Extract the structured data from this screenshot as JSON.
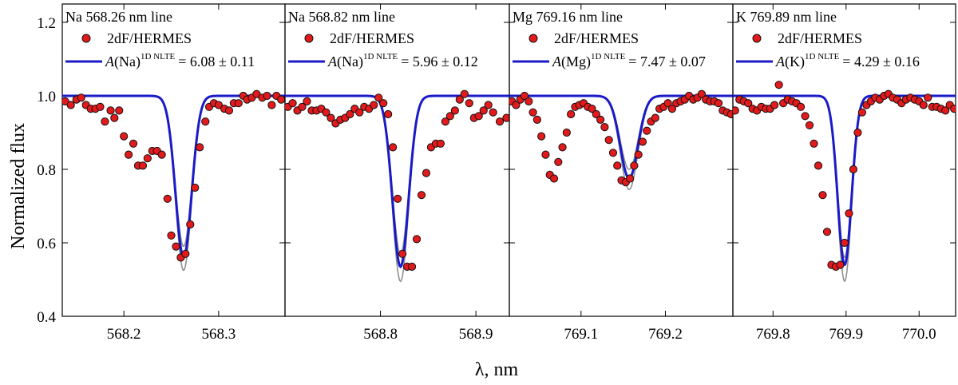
{
  "figure": {
    "ylabel": "Normalized flux",
    "xlabel": "λ, nm",
    "ylim": [
      0.4,
      1.25
    ],
    "yticks": [
      0.4,
      0.6,
      0.8,
      1.0,
      1.2
    ],
    "ytick_labels": [
      "0.4",
      "0.6",
      "0.8",
      "1.0",
      "1.2"
    ],
    "legend_points_label": "2dF/HERMES"
  },
  "colors": {
    "points": "#e31a1c",
    "best_fit": "#1a1ac8",
    "error_band": "#909090"
  },
  "chart_data": [
    {
      "type": "scatter",
      "title": "Na 568.26 nm line",
      "xlim": [
        568.135,
        568.37
      ],
      "xticks": [
        568.2,
        568.3
      ],
      "xtick_labels": [
        "568.2",
        "568.3"
      ],
      "fit_label": {
        "prefix": "A(Na)",
        "superscript": "1D NLTE",
        "value": "= 6.08 ± 0.11"
      },
      "line": {
        "center": 568.263,
        "depth": 0.44,
        "sigma": 0.0085,
        "depth_low": 0.41,
        "depth_high": 0.475
      },
      "observed": {
        "x": [
          568.138,
          568.144,
          568.15,
          568.155,
          568.16,
          568.165,
          568.17,
          568.175,
          568.18,
          568.186,
          568.19,
          568.195,
          568.2,
          568.205,
          568.21,
          568.215,
          568.22,
          568.225,
          568.23,
          568.235,
          568.24,
          568.246,
          568.25,
          568.255,
          568.26,
          568.265,
          568.27,
          568.275,
          568.28,
          568.286,
          568.29,
          568.295,
          568.3,
          568.306,
          568.311,
          568.316,
          568.321,
          568.326,
          568.33,
          568.335,
          568.34,
          568.346,
          568.351,
          568.356,
          568.361,
          568.366
        ],
        "y": [
          0.985,
          0.975,
          0.99,
          0.995,
          0.975,
          0.965,
          0.965,
          0.97,
          0.93,
          0.96,
          0.94,
          0.96,
          0.89,
          0.84,
          0.87,
          0.81,
          0.81,
          0.83,
          0.85,
          0.85,
          0.84,
          0.72,
          0.62,
          0.59,
          0.56,
          0.57,
          0.65,
          0.75,
          0.86,
          0.93,
          0.97,
          0.98,
          0.975,
          0.965,
          0.96,
          0.98,
          0.98,
          1.0,
          0.99,
          0.995,
          1.005,
          0.995,
          1.0,
          0.975,
          1.0,
          0.99
        ]
      }
    },
    {
      "type": "scatter",
      "title": "Na 568.82 nm line",
      "xlim": [
        568.7,
        568.935
      ],
      "xticks": [
        568.8,
        568.9
      ],
      "xtick_labels": [
        "568.8",
        "568.9"
      ],
      "fit_label": {
        "prefix": "A(Na)",
        "superscript": "1D NLTE",
        "value": "= 5.96 ± 0.12"
      },
      "line": {
        "center": 568.821,
        "depth": 0.465,
        "sigma": 0.0085,
        "depth_low": 0.43,
        "depth_high": 0.505
      },
      "observed": {
        "x": [
          568.703,
          568.708,
          568.713,
          568.718,
          568.723,
          568.728,
          568.733,
          568.738,
          568.743,
          568.748,
          568.753,
          568.758,
          568.763,
          568.768,
          568.773,
          568.778,
          568.783,
          568.788,
          568.793,
          568.798,
          568.803,
          568.808,
          568.813,
          568.818,
          568.823,
          568.828,
          568.833,
          568.838,
          568.843,
          568.848,
          568.853,
          568.858,
          568.863,
          568.868,
          568.873,
          568.878,
          568.883,
          568.888,
          568.893,
          568.898,
          568.903,
          568.908,
          568.913,
          568.918,
          568.925,
          568.932
        ],
        "y": [
          0.97,
          0.98,
          0.96,
          0.97,
          0.985,
          0.96,
          0.96,
          0.965,
          0.955,
          0.94,
          0.925,
          0.935,
          0.94,
          0.95,
          0.965,
          0.955,
          0.97,
          0.965,
          0.975,
          0.995,
          0.98,
          0.95,
          0.86,
          0.72,
          0.57,
          0.535,
          0.535,
          0.61,
          0.73,
          0.79,
          0.86,
          0.87,
          0.87,
          0.93,
          0.945,
          0.96,
          0.99,
          1.005,
          0.98,
          0.94,
          0.945,
          0.96,
          0.975,
          0.955,
          0.93,
          0.94
        ]
      }
    },
    {
      "type": "scatter",
      "title": "Mg 769.16 nm line",
      "xlim": [
        769.015,
        769.28
      ],
      "xticks": [
        769.1,
        769.2
      ],
      "xtick_labels": [
        "769.1",
        "769.2"
      ],
      "fit_label": {
        "prefix": "A(Mg)",
        "superscript": "1D NLTE",
        "value": "= 7.47 ± 0.07"
      },
      "line": {
        "center": 769.157,
        "depth": 0.225,
        "sigma": 0.0105,
        "depth_low": 0.2,
        "depth_high": 0.255
      },
      "observed": {
        "x": [
          769.018,
          769.023,
          769.028,
          769.033,
          769.038,
          769.043,
          769.048,
          769.053,
          769.058,
          769.063,
          769.068,
          769.073,
          769.078,
          769.083,
          769.088,
          769.093,
          769.098,
          769.103,
          769.108,
          769.113,
          769.118,
          769.123,
          769.128,
          769.133,
          769.138,
          769.143,
          769.148,
          769.153,
          769.158,
          769.163,
          769.168,
          769.173,
          769.178,
          769.183,
          769.188,
          769.193,
          769.198,
          769.203,
          769.208,
          769.213,
          769.218,
          769.223,
          769.228,
          769.233,
          769.238,
          769.243,
          769.248,
          769.253,
          769.258,
          769.263,
          769.268,
          769.273,
          769.278
        ],
        "y": [
          0.985,
          0.975,
          0.99,
          1.0,
          0.985,
          0.955,
          0.935,
          0.89,
          0.84,
          0.785,
          0.775,
          0.82,
          0.86,
          0.9,
          0.95,
          0.97,
          0.975,
          0.98,
          0.97,
          0.965,
          0.95,
          0.935,
          0.915,
          0.88,
          0.845,
          0.81,
          0.77,
          0.765,
          0.775,
          0.81,
          0.84,
          0.875,
          0.905,
          0.93,
          0.94,
          0.965,
          0.97,
          0.98,
          0.965,
          0.98,
          0.985,
          0.99,
          1.0,
          0.99,
          0.995,
          1.005,
          0.99,
          0.985,
          0.985,
          0.98,
          0.96,
          0.955,
          0.95
        ]
      }
    },
    {
      "type": "scatter",
      "title": "K 769.89 nm line",
      "xlim": [
        769.745,
        770.05
      ],
      "xticks": [
        769.8,
        769.9,
        770.0
      ],
      "xtick_labels": [
        "769.8",
        "769.9",
        "770.0"
      ],
      "fit_label": {
        "prefix": "A(K)",
        "superscript": "1D NLTE",
        "value": "= 4.29 ± 0.16"
      },
      "line": {
        "center": 769.898,
        "depth": 0.46,
        "sigma": 0.0095,
        "depth_low": 0.44,
        "depth_high": 0.505
      },
      "observed": {
        "x": [
          769.748,
          769.754,
          769.76,
          769.766,
          769.772,
          769.778,
          769.784,
          769.79,
          769.796,
          769.802,
          769.808,
          769.814,
          769.82,
          769.826,
          769.832,
          769.838,
          769.844,
          769.85,
          769.856,
          769.862,
          769.868,
          769.874,
          769.88,
          769.886,
          769.892,
          769.898,
          769.904,
          769.91,
          769.916,
          769.922,
          769.928,
          769.934,
          769.94,
          769.946,
          769.952,
          769.958,
          769.964,
          769.97,
          769.976,
          769.982,
          769.988,
          769.994,
          770.0,
          770.006,
          770.012,
          770.018,
          770.024,
          770.03,
          770.036,
          770.042,
          770.048
        ],
        "y": [
          0.96,
          0.99,
          0.985,
          0.98,
          0.965,
          0.96,
          0.97,
          0.965,
          0.965,
          0.975,
          1.03,
          0.98,
          0.99,
          0.985,
          0.98,
          0.97,
          0.945,
          0.92,
          0.87,
          0.81,
          0.73,
          0.63,
          0.54,
          0.535,
          0.54,
          0.6,
          0.68,
          0.8,
          0.9,
          0.955,
          0.975,
          0.985,
          0.995,
          0.99,
          1.0,
          1.005,
          0.995,
          0.99,
          0.98,
          0.99,
          0.995,
          0.99,
          0.985,
          0.975,
          0.995,
          0.97,
          0.97,
          0.965,
          0.96,
          0.975,
          0.965
        ]
      }
    }
  ]
}
